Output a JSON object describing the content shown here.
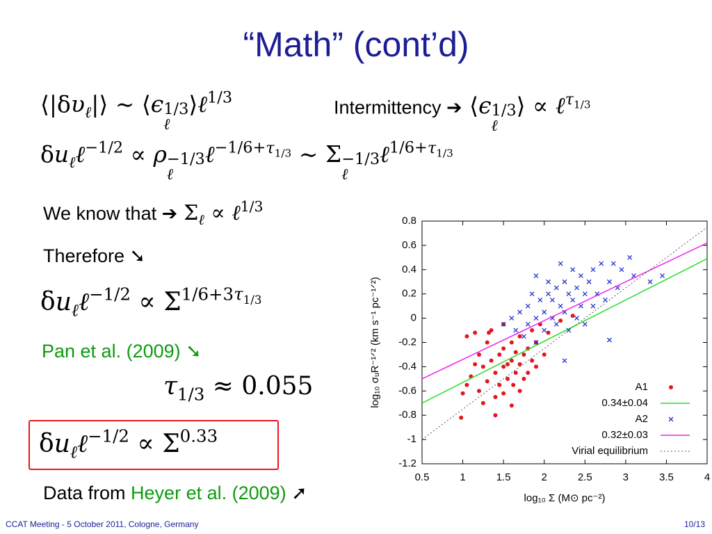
{
  "slide": {
    "title": "“Math” (cont’d)",
    "eq1": [
      "⟨|δ",
      {
        "base": "υ",
        "sub": "ℓ"
      },
      "|⟩ ∼ ⟨",
      {
        "base": "ϵ",
        "sub": "ℓ",
        "sup": "1/3"
      },
      "⟩",
      {
        "base": "ℓ",
        "sup": "1/3"
      }
    ],
    "intermittency": {
      "label": "Intermittency ➔",
      "eq": [
        " ⟨",
        {
          "base": "ϵ",
          "sub": "ℓ",
          "sup": "1/3"
        },
        "⟩ ∝ ",
        {
          "base": "ℓ",
          "sup": [
            {
              "base": "τ",
              "sub": "1/3"
            }
          ]
        }
      ]
    },
    "eq2": [
      "δ",
      {
        "base": "u",
        "sub": "ℓ"
      },
      {
        "base": "ℓ",
        "sup": "−1/2"
      },
      " ∝ ",
      {
        "base": "ρ",
        "sub": "ℓ",
        "sup": "−1/3"
      },
      {
        "base": "ℓ",
        "sup": [
          "−1/6+",
          {
            "base": "τ",
            "sub": "1/3"
          }
        ]
      },
      " ∼ ",
      {
        "base": "Σ",
        "sub": "ℓ",
        "sup": "−1/3"
      },
      {
        "base": "ℓ",
        "sup": [
          "1/6+",
          {
            "base": "τ",
            "sub": "1/3"
          }
        ]
      }
    ],
    "know": {
      "label": "We know that ➔",
      "eq": [
        {
          "base": "Σ",
          "sub": "ℓ"
        },
        " ∝ ",
        {
          "base": "ℓ",
          "sup": "1/3"
        }
      ]
    },
    "therefore": "Therefore ➘",
    "eq3": [
      "δ",
      {
        "base": "u",
        "sub": "ℓ"
      },
      {
        "base": "ℓ",
        "sup": "−1/2"
      },
      " ∝ ",
      {
        "base": "Σ",
        "sup": [
          "1/6+3",
          {
            "base": "τ",
            "sub": "1/3"
          }
        ]
      }
    ],
    "pan": "Pan et al. (2009) ➘",
    "eq4": [
      {
        "base": "τ",
        "sub": "1/3"
      },
      " ≈ 0.055"
    ],
    "boxed_eq": [
      "δ",
      {
        "base": "u",
        "sub": "ℓ"
      },
      {
        "base": "ℓ",
        "sup": "−1/2"
      },
      " ∝ ",
      {
        "base": "Σ",
        "sup": "0.33"
      }
    ],
    "data_from": {
      "text": "Data from ",
      "ref": "Heyer et al. (2009)",
      "arrow": " ➚"
    },
    "footer": {
      "left": "CCAT Meeting - 5 October 2011, Cologne, Germany",
      "right": "10/13"
    }
  },
  "chart_data": {
    "type": "scatter",
    "x_label": "log₁₀ Σ (M⊙ pc⁻²)",
    "y_label": "log₁₀ σᵤR⁻¹ᐟ² (km s⁻¹ pc⁻¹ᐟ²)",
    "xlim": [
      0.5,
      4
    ],
    "ylim": [
      -1.2,
      0.8
    ],
    "xticks": [
      0.5,
      1,
      1.5,
      2,
      2.5,
      3,
      3.5,
      4
    ],
    "yticks": [
      -1.2,
      -1,
      -0.8,
      -0.6,
      -0.4,
      -0.2,
      0,
      0.2,
      0.4,
      0.6,
      0.8
    ],
    "series": [
      {
        "name": "A1",
        "marker": "dot",
        "color": "#e8141c",
        "x": [
          0.98,
          1.0,
          1.05,
          1.05,
          1.1,
          1.15,
          1.15,
          1.2,
          1.2,
          1.25,
          1.25,
          1.3,
          1.3,
          1.35,
          1.35,
          1.4,
          1.4,
          1.4,
          1.45,
          1.45,
          1.5,
          1.5,
          1.5,
          1.5,
          1.55,
          1.55,
          1.6,
          1.6,
          1.6,
          1.65,
          1.65,
          1.7,
          1.7,
          1.7,
          1.75,
          1.75,
          1.8,
          1.8,
          1.85,
          1.85,
          1.9,
          1.9,
          1.95,
          2.0,
          2.05,
          2.2,
          2.35,
          1.62,
          1.32
        ],
        "values": [
          -0.82,
          -0.62,
          -0.55,
          -0.15,
          -0.48,
          -0.12,
          -0.38,
          -0.3,
          -0.6,
          -0.4,
          -0.7,
          -0.2,
          -0.52,
          -0.35,
          -0.1,
          -0.45,
          -0.65,
          -0.8,
          -0.3,
          -0.55,
          -0.25,
          -0.4,
          -0.62,
          -0.05,
          -0.38,
          -0.5,
          -0.2,
          -0.35,
          -0.72,
          -0.28,
          -0.45,
          -0.15,
          -0.38,
          -0.6,
          -0.3,
          -0.5,
          -0.25,
          -0.45,
          -0.1,
          -0.35,
          -0.2,
          -0.4,
          -0.05,
          -0.3,
          -0.12,
          -0.02,
          0.02,
          -0.55,
          -0.12
        ]
      },
      {
        "name": "0.34±0.04",
        "marker": "line",
        "color": "#22dd22",
        "x": [
          0.5,
          4
        ],
        "values": [
          -0.7,
          0.49
        ]
      },
      {
        "name": "A2",
        "marker": "cross",
        "color": "#2233cc",
        "x": [
          1.5,
          1.6,
          1.65,
          1.7,
          1.75,
          1.8,
          1.8,
          1.85,
          1.9,
          1.9,
          1.95,
          2.0,
          2.0,
          2.05,
          2.05,
          2.1,
          2.1,
          2.15,
          2.15,
          2.2,
          2.2,
          2.25,
          2.25,
          2.3,
          2.3,
          2.35,
          2.35,
          2.4,
          2.4,
          2.45,
          2.45,
          2.5,
          2.5,
          2.55,
          2.6,
          2.6,
          2.65,
          2.7,
          2.75,
          2.8,
          2.85,
          2.9,
          2.95,
          3.05,
          3.1,
          3.3,
          3.45,
          2.8,
          2.25,
          1.9
        ],
        "values": [
          -0.05,
          0.0,
          -0.1,
          0.05,
          -0.15,
          0.1,
          -0.05,
          0.2,
          0.0,
          -0.2,
          0.15,
          0.05,
          -0.1,
          0.2,
          0.3,
          0.0,
          0.15,
          -0.05,
          0.25,
          0.1,
          0.45,
          0.05,
          0.3,
          -0.1,
          0.2,
          0.15,
          0.4,
          0.0,
          0.25,
          0.1,
          0.35,
          0.2,
          -0.05,
          0.3,
          0.1,
          0.4,
          0.2,
          0.45,
          0.15,
          0.3,
          0.45,
          0.25,
          0.4,
          0.5,
          0.35,
          0.3,
          0.35,
          -0.18,
          -0.35,
          0.35
        ]
      },
      {
        "name": "0.32±0.03",
        "marker": "line",
        "color": "#ee22ee",
        "x": [
          0.5,
          4
        ],
        "values": [
          -0.5,
          0.62
        ]
      },
      {
        "name": "Virial equilibrium",
        "marker": "dotted",
        "color": "#555555",
        "x": [
          0.5,
          4
        ],
        "values": [
          -1,
          0.75
        ]
      }
    ]
  }
}
